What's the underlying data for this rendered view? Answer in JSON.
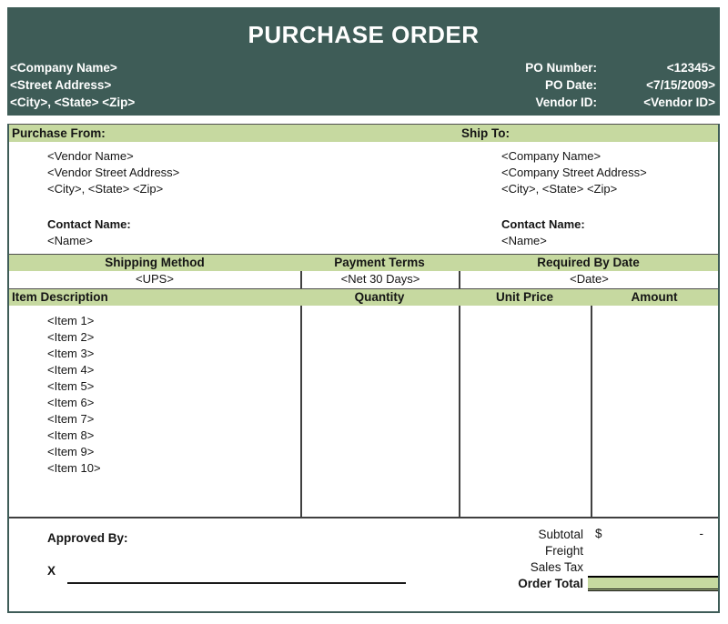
{
  "colors": {
    "header_bg": "#3E5C57",
    "accent_green": "#C6D9A0"
  },
  "header": {
    "title": "PURCHASE ORDER",
    "company": {
      "name": "<Company Name>",
      "street": "<Street Address>",
      "city_state_zip": "<City>, <State> <Zip>"
    },
    "po_fields": [
      {
        "label": "PO Number:",
        "value": "<12345>"
      },
      {
        "label": "PO Date:",
        "value": "<7/15/2009>"
      },
      {
        "label": "Vendor ID:",
        "value": "<Vendor ID>"
      }
    ]
  },
  "purchase_from": {
    "heading": "Purchase From:",
    "lines": [
      "<Vendor Name>",
      "<Vendor Street Address>",
      "<City>, <State> <Zip>"
    ],
    "contact_label": "Contact Name:",
    "contact_value": "<Name>"
  },
  "ship_to": {
    "heading": "Ship To:",
    "lines": [
      "<Company Name>",
      "<Company Street Address>",
      "<City>, <State> <Zip>"
    ],
    "contact_label": "Contact Name:",
    "contact_value": "<Name>"
  },
  "terms": {
    "headers": [
      "Shipping Method",
      "Payment Terms",
      "Required By Date"
    ],
    "values": [
      "<UPS>",
      "<Net 30 Days>",
      "<Date>"
    ]
  },
  "items": {
    "headers": [
      "Item Description",
      "Quantity",
      "Unit Price",
      "Amount"
    ],
    "rows": [
      "<Item 1>",
      "<Item 2>",
      "<Item 3>",
      "<Item 4>",
      "<Item 5>",
      "<Item 6>",
      "<Item 7>",
      "<Item 8>",
      "<Item 9>",
      "<Item 10>"
    ]
  },
  "footer": {
    "approved_by_label": "Approved By:",
    "signature_mark": "X",
    "totals": [
      {
        "label": "Subtotal",
        "currency": "$",
        "value": "-"
      },
      {
        "label": "Freight",
        "currency": "",
        "value": ""
      },
      {
        "label": "Sales Tax",
        "currency": "",
        "value": ""
      },
      {
        "label": "Order Total",
        "currency": "",
        "value": ""
      }
    ]
  }
}
